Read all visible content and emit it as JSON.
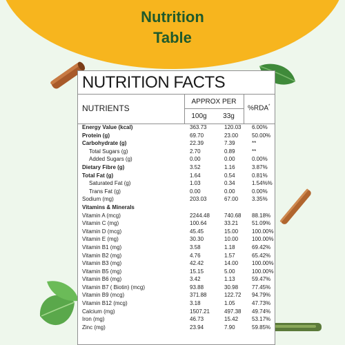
{
  "header": {
    "title_line1": "Nutrition",
    "title_line2": "Table"
  },
  "table": {
    "title": "NUTRITION FACTS",
    "col_nutrients": "NUTRIENTS",
    "col_approx": "APPROX PER",
    "col_100g": "100g",
    "col_33g": "33g",
    "col_rda": "%RDA",
    "col_rda_mark": "*",
    "rows": [
      {
        "name": "Energy Value (kcal)",
        "v100": "363.73",
        "v33": "120.03",
        "rda": "6.00%",
        "bold": true,
        "sub": false
      },
      {
        "name": "Protein (g)",
        "v100": "69.70",
        "v33": "23.00",
        "rda": "50.00%",
        "bold": true,
        "sub": false
      },
      {
        "name": "Carbohydrate (g)",
        "v100": "22.39",
        "v33": "7.39",
        "rda": "**",
        "bold": true,
        "sub": false
      },
      {
        "name": "Total Sugars (g)",
        "v100": "2.70",
        "v33": "0.89",
        "rda": "**",
        "bold": false,
        "sub": true
      },
      {
        "name": "Added Sugars (g)",
        "v100": "0.00",
        "v33": "0.00",
        "rda": "0.00%",
        "bold": false,
        "sub": true
      },
      {
        "name": "Dietary Fibre (g)",
        "v100": "3.52",
        "v33": "1.16",
        "rda": "3.87%",
        "bold": true,
        "sub": false
      },
      {
        "name": "Total Fat (g)",
        "v100": "1.64",
        "v33": "0.54",
        "rda": "0.81%",
        "bold": true,
        "sub": false
      },
      {
        "name": "Saturated Fat (g)",
        "v100": "1.03",
        "v33": "0.34",
        "rda": "1.54%%",
        "bold": false,
        "sub": true
      },
      {
        "name": "Trans Fat (g)",
        "v100": "0.00",
        "v33": "0.00",
        "rda": "0.00%",
        "bold": false,
        "sub": true
      },
      {
        "name": "Sodium (mg)",
        "v100": "203.03",
        "v33": "67.00",
        "rda": "3.35%",
        "bold": false,
        "sub": false
      },
      {
        "name": "Vitamins & Minerals",
        "v100": "",
        "v33": "",
        "rda": "",
        "bold": true,
        "sub": false
      },
      {
        "name": "Vitamin A (mcg)",
        "v100": "2244.48",
        "v33": "740.68",
        "rda": "88.18%",
        "bold": false,
        "sub": false
      },
      {
        "name": "Vitamin C (mg)",
        "v100": "100.64",
        "v33": "33.21",
        "rda": "51.09%",
        "bold": false,
        "sub": false
      },
      {
        "name": "Vitamin D (mcg)",
        "v100": "45.45",
        "v33": "15.00",
        "rda": "100.00%",
        "bold": false,
        "sub": false
      },
      {
        "name": "Vitamin E (mg)",
        "v100": "30.30",
        "v33": "10.00",
        "rda": "100.00%",
        "bold": false,
        "sub": false
      },
      {
        "name": "Vitamin B1 (mg)",
        "v100": "3.58",
        "v33": "1.18",
        "rda": "69.42%",
        "bold": false,
        "sub": false
      },
      {
        "name": "Vitamin B2 (mg)",
        "v100": "4.76",
        "v33": "1.57",
        "rda": "65.42%",
        "bold": false,
        "sub": false
      },
      {
        "name": "Vitamin B3 (mg)",
        "v100": "42.42",
        "v33": "14.00",
        "rda": "100.00%",
        "bold": false,
        "sub": false
      },
      {
        "name": "Vitamin B5 (mg)",
        "v100": "15.15",
        "v33": "5.00",
        "rda": "100.00%",
        "bold": false,
        "sub": false
      },
      {
        "name": "Vitamin B6 (mg)",
        "v100": "3.42",
        "v33": "1.13",
        "rda": "59.47%",
        "bold": false,
        "sub": false
      },
      {
        "name": "Vitamin B7 ( Biotin) (mcg)",
        "v100": "93.88",
        "v33": "30.98",
        "rda": "77.45%",
        "bold": false,
        "sub": false
      },
      {
        "name": "Vitamin B9 (mcg)",
        "v100": "371.88",
        "v33": "122.72",
        "rda": "94.79%",
        "bold": false,
        "sub": false
      },
      {
        "name": "Vitamin B12 (mcg)",
        "v100": "3.18",
        "v33": "1.05",
        "rda": "47.73%",
        "bold": false,
        "sub": false
      },
      {
        "name": "Calcium (mg)",
        "v100": "1507.21",
        "v33": "497.38",
        "rda": "49.74%",
        "bold": false,
        "sub": false
      },
      {
        "name": "Iron (mg)",
        "v100": "46.73",
        "v33": "15.42",
        "rda": "53.17%",
        "bold": false,
        "sub": false
      },
      {
        "name": "Zinc (mg)",
        "v100": "23.94",
        "v33": "7.90",
        "rda": "59.85%",
        "bold": false,
        "sub": false
      }
    ]
  },
  "decor": {
    "icons": [
      "cinnamon-stick-icon",
      "leaf-icon",
      "herb-sprig-icon"
    ],
    "colors": {
      "accent": "#f7b51e",
      "heading": "#1f5a2c",
      "background": "#eef7ec"
    }
  }
}
